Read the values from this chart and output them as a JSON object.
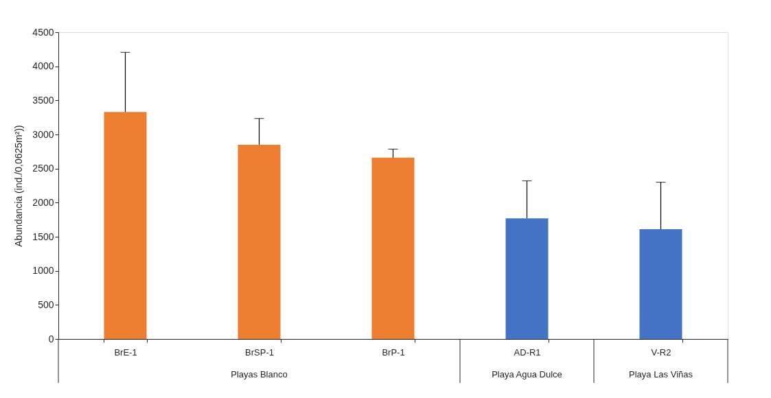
{
  "chart_data": {
    "type": "bar",
    "ylabel": "Abundancia (ind./0,0625m²))",
    "categories": [
      "BrE-1",
      "BrSP-1",
      "BrP-1",
      "AD-R1",
      "V-R2"
    ],
    "values": [
      3330,
      2850,
      2660,
      1770,
      1610
    ],
    "colors": [
      "#ed7d31",
      "#ed7d31",
      "#ed7d31",
      "#4472c4",
      "#4472c4"
    ],
    "errors": [
      [
        3330,
        4205
      ],
      [
        2850,
        3235
      ],
      [
        2660,
        2785
      ],
      [
        1770,
        2320
      ],
      [
        1610,
        2300
      ]
    ],
    "ylim": [
      0,
      4500
    ],
    "yticks": [
      0,
      500,
      1000,
      1500,
      2000,
      2500,
      3000,
      3500,
      4000,
      4500
    ],
    "grid": false,
    "annotations": [
      "Playas Blanco",
      "Playa Agua Dulce",
      "Playa Las Viñas"
    ]
  }
}
